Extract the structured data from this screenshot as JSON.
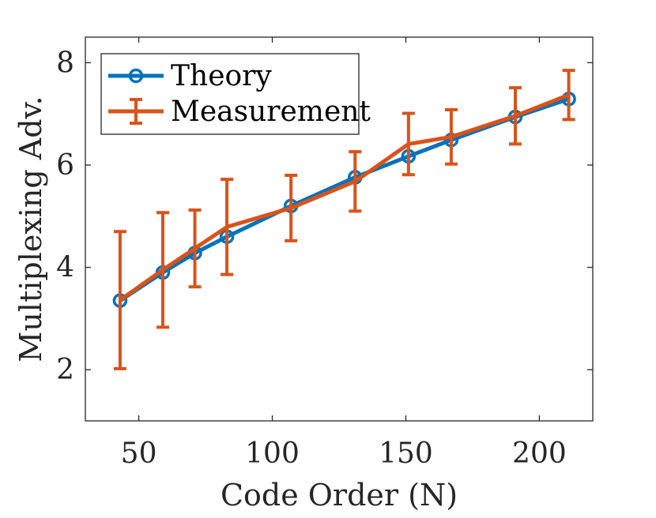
{
  "chart_data": {
    "type": "line",
    "title": "",
    "xlabel": "Code Order (N)",
    "ylabel": "Multiplexing Adv.",
    "xlim": [
      30,
      220
    ],
    "ylim": [
      1,
      8.5
    ],
    "xticks": [
      50,
      100,
      150,
      200
    ],
    "yticks": [
      2,
      4,
      6,
      8
    ],
    "xtick_labels": [
      "50",
      "100",
      "150",
      "200"
    ],
    "ytick_labels": [
      "2",
      "4",
      "6",
      "8"
    ],
    "grid": false,
    "legend_position": "top-left",
    "series": [
      {
        "name": "Theory",
        "color": "#0072BD",
        "marker": "circle",
        "x": [
          43,
          59,
          71,
          83,
          107,
          131,
          151,
          167,
          191,
          211
        ],
        "y": [
          3.35,
          3.9,
          4.28,
          4.6,
          5.2,
          5.76,
          6.17,
          6.49,
          6.94,
          7.29
        ]
      },
      {
        "name": "Measurement",
        "color": "#D95319",
        "marker": "errorbar",
        "x": [
          43,
          59,
          71,
          83,
          107,
          131,
          151,
          167,
          191,
          211
        ],
        "y": [
          3.36,
          3.95,
          4.37,
          4.79,
          5.16,
          5.68,
          6.41,
          6.55,
          6.96,
          7.37
        ],
        "err_low": [
          1.34,
          1.12,
          0.75,
          0.93,
          0.64,
          0.58,
          0.6,
          0.53,
          0.55,
          0.48
        ],
        "err_high": [
          1.34,
          1.12,
          0.75,
          0.93,
          0.64,
          0.58,
          0.6,
          0.53,
          0.55,
          0.48
        ]
      }
    ]
  }
}
